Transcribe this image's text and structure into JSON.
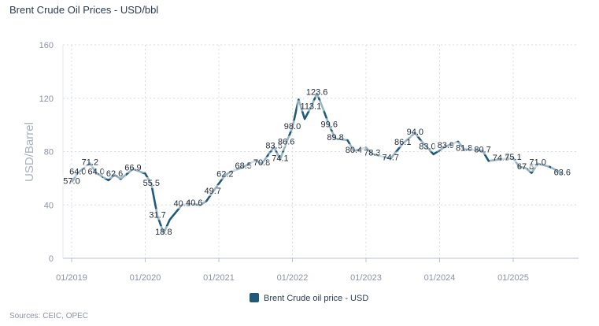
{
  "chart_data": {
    "type": "line",
    "title": "Brent Crude Oil Prices - USD/bbl",
    "ylabel": "USD/Barrel",
    "xlabel": "",
    "ylim": [
      0,
      160
    ],
    "yticks": [
      0,
      40,
      80,
      120,
      160
    ],
    "xticks": [
      "01/2019",
      "01/2020",
      "01/2021",
      "01/2022",
      "01/2023",
      "01/2024",
      "01/2025"
    ],
    "grid": true,
    "legend": "bottom-center",
    "series": [
      {
        "name": "Brent Crude oil price - USD",
        "color": "#1f5a7a",
        "points": [
          {
            "x": 0,
            "y": 57.0,
            "label": "57.0"
          },
          {
            "x": 1,
            "y": 64.0,
            "label": "64.0"
          },
          {
            "x": 3,
            "y": 71.2,
            "label": "71.2"
          },
          {
            "x": 4,
            "y": 64.0,
            "label": "64.0"
          },
          {
            "x": 6,
            "y": 58.5
          },
          {
            "x": 7,
            "y": 62.6,
            "label": "62.6"
          },
          {
            "x": 8,
            "y": 59.5
          },
          {
            "x": 10,
            "y": 66.9,
            "label": "66.9"
          },
          {
            "x": 12,
            "y": 63.5
          },
          {
            "x": 13,
            "y": 55.5,
            "label": "55.5"
          },
          {
            "x": 14,
            "y": 31.7,
            "label": "31.7"
          },
          {
            "x": 15,
            "y": 18.8,
            "label": "18.8"
          },
          {
            "x": 16,
            "y": 29.0
          },
          {
            "x": 18,
            "y": 40.1,
            "label": "40.1"
          },
          {
            "x": 20,
            "y": 40.6,
            "label": "40.6"
          },
          {
            "x": 21,
            "y": 39.8
          },
          {
            "x": 22,
            "y": 43.0
          },
          {
            "x": 23,
            "y": 49.7,
            "label": "49.7"
          },
          {
            "x": 25,
            "y": 62.2,
            "label": "62.2"
          },
          {
            "x": 26,
            "y": 65.0
          },
          {
            "x": 28,
            "y": 68.5,
            "label": "68.5"
          },
          {
            "x": 30,
            "y": 73.5
          },
          {
            "x": 31,
            "y": 70.8,
            "label": "70.8"
          },
          {
            "x": 33,
            "y": 83.5,
            "label": "83.5"
          },
          {
            "x": 34,
            "y": 74.1,
            "label": "74.1"
          },
          {
            "x": 35,
            "y": 86.6,
            "label": "86.6"
          },
          {
            "x": 36,
            "y": 98.0,
            "label": "98.0"
          },
          {
            "x": 37,
            "y": 119.0
          },
          {
            "x": 38,
            "y": 104.5
          },
          {
            "x": 39,
            "y": 113.1,
            "label": "113.1"
          },
          {
            "x": 40,
            "y": 123.6,
            "label": "123.6"
          },
          {
            "x": 41,
            "y": 112.0
          },
          {
            "x": 42,
            "y": 99.6,
            "label": "99.6"
          },
          {
            "x": 43,
            "y": 89.8,
            "label": "89.8"
          },
          {
            "x": 45,
            "y": 88.5
          },
          {
            "x": 46,
            "y": 80.4,
            "label": "80.4"
          },
          {
            "x": 48,
            "y": 83.0
          },
          {
            "x": 49,
            "y": 78.3,
            "label": "78.3"
          },
          {
            "x": 52,
            "y": 74.7,
            "label": "74.7"
          },
          {
            "x": 54,
            "y": 86.1,
            "label": "86.1"
          },
          {
            "x": 56,
            "y": 94.0,
            "label": "94.0"
          },
          {
            "x": 57,
            "y": 88.0
          },
          {
            "x": 58,
            "y": 83.0,
            "label": "83.0"
          },
          {
            "x": 59,
            "y": 78.0
          },
          {
            "x": 61,
            "y": 83.9,
            "label": "83.9"
          },
          {
            "x": 63,
            "y": 87.5
          },
          {
            "x": 64,
            "y": 81.8,
            "label": "81.8"
          },
          {
            "x": 67,
            "y": 80.7,
            "label": "80.7"
          },
          {
            "x": 68,
            "y": 73.0
          },
          {
            "x": 70,
            "y": 74.3,
            "label": "74.3"
          },
          {
            "x": 72,
            "y": 75.1,
            "label": "75.1"
          },
          {
            "x": 73,
            "y": 68.5
          },
          {
            "x": 74,
            "y": 67.8,
            "label": "67.8"
          },
          {
            "x": 75,
            "y": 64.0
          },
          {
            "x": 76,
            "y": 71.0,
            "label": "71.0"
          },
          {
            "x": 78,
            "y": 68.5
          },
          {
            "x": 80,
            "y": 63.6,
            "label": "63.6"
          }
        ]
      }
    ]
  },
  "source": "Sources: CEIC, OPEC"
}
